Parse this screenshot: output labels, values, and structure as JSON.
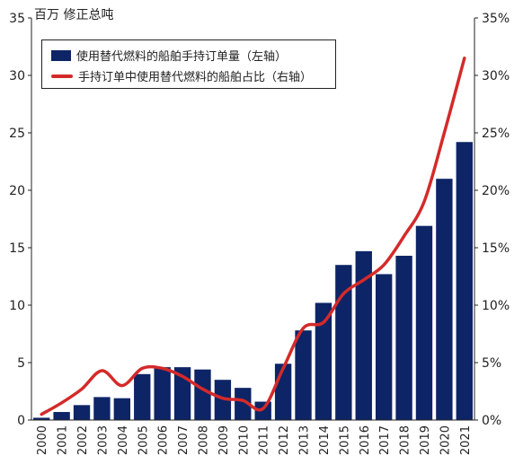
{
  "header": {
    "unit_label": "百万 修正总吨"
  },
  "legend": {
    "bar_label": "使用替代燃料的船舶手持订单量（左轴）",
    "line_label": "手持订单中使用替代燃料的船舶占比（右轴）"
  },
  "colors": {
    "bar": "#0d2466",
    "line": "#d42a2a"
  },
  "chart_data": {
    "type": "bar+line",
    "categories": [
      "2000",
      "2001",
      "2002",
      "2003",
      "2004",
      "2005",
      "2006",
      "2007",
      "2008",
      "2009",
      "2010",
      "2011",
      "2012",
      "2013",
      "2014",
      "2015",
      "2016",
      "2017",
      "2018",
      "2019",
      "2020",
      "2021"
    ],
    "series": [
      {
        "name": "使用替代燃料的船舶手持订单量（左轴）",
        "type": "bar",
        "axis": "left",
        "values": [
          0.2,
          0.7,
          1.3,
          2.0,
          1.9,
          4.0,
          4.6,
          4.6,
          4.4,
          3.5,
          2.8,
          1.6,
          4.9,
          7.8,
          10.2,
          13.5,
          14.7,
          12.7,
          14.3,
          16.9,
          21.0,
          24.2
        ]
      },
      {
        "name": "手持订单中使用替代燃料的船舶占比（右轴）",
        "type": "line",
        "axis": "right",
        "values": [
          0.5,
          1.5,
          2.7,
          4.3,
          3.0,
          4.5,
          4.5,
          3.8,
          2.7,
          1.9,
          1.7,
          1.0,
          4.5,
          8.0,
          8.5,
          11.0,
          12.2,
          13.5,
          16.0,
          19.0,
          25.0,
          31.5
        ]
      }
    ],
    "ylim_left": [
      0,
      35
    ],
    "ylim_right": [
      0,
      35
    ],
    "yticks_left": [
      "0",
      "5",
      "10",
      "15",
      "20",
      "25",
      "30",
      "35"
    ],
    "yticks_right": [
      "0%",
      "5%",
      "10%",
      "15%",
      "20%",
      "25%",
      "30%",
      "35%"
    ],
    "grid": false,
    "legend_position": "top-left"
  }
}
